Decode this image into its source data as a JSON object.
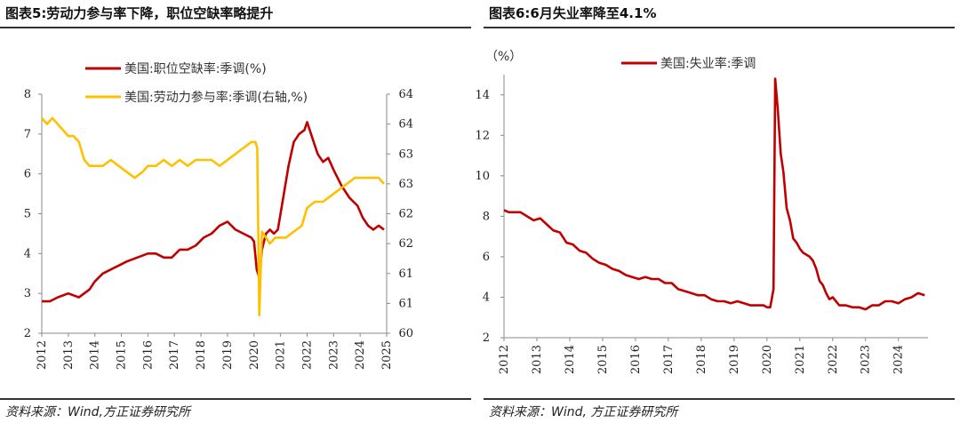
{
  "left_panel": {
    "title": "图表5:劳动力参与率下降，职位空缺率略提升",
    "source": "资料来源：Wind,方正证券研究所"
  },
  "right_panel": {
    "title": "图表6:6月失业率降至4.1%",
    "source": "资料来源：Wind, 方正证券研究所"
  },
  "chart_data": [
    {
      "type": "line",
      "title": "图表5:劳动力参与率下降，职位空缺率略提升",
      "x_ticks": [
        "2012",
        "2013",
        "2014",
        "2015",
        "2016",
        "2017",
        "2018",
        "2019",
        "2020",
        "2021",
        "2022",
        "2023",
        "2024",
        "2025"
      ],
      "xlim": [
        2012,
        2025
      ],
      "ylim_left": [
        2,
        8
      ],
      "y_ticks_left": [
        "2",
        "3",
        "4",
        "5",
        "6",
        "7",
        "8"
      ],
      "ylim_right": [
        60,
        64
      ],
      "y_ticks_right": [
        "60",
        "61",
        "61",
        "62",
        "62",
        "63",
        "63",
        "64",
        "64"
      ],
      "y_ticks_right_values": [
        60,
        60.5,
        61,
        61.5,
        62,
        62.5,
        63,
        63.5,
        64
      ],
      "series": [
        {
          "name": "美国:职位空缺率:季调(%)",
          "axis": "left",
          "color": "#c00000",
          "x": [
            2012.0,
            2012.3,
            2012.6,
            2013.0,
            2013.4,
            2013.8,
            2014.0,
            2014.3,
            2014.6,
            2014.9,
            2015.2,
            2015.6,
            2016.0,
            2016.3,
            2016.6,
            2016.9,
            2017.2,
            2017.5,
            2017.8,
            2018.1,
            2018.4,
            2018.7,
            2019.0,
            2019.3,
            2019.6,
            2019.9,
            2020.0,
            2020.1,
            2020.2,
            2020.3,
            2020.45,
            2020.6,
            2020.75,
            2020.9,
            2021.1,
            2021.3,
            2021.5,
            2021.7,
            2021.9,
            2022.0,
            2022.2,
            2022.4,
            2022.6,
            2022.8,
            2023.0,
            2023.3,
            2023.6,
            2023.9,
            2024.1,
            2024.3,
            2024.5,
            2024.7,
            2024.9
          ],
          "y": [
            2.8,
            2.8,
            2.9,
            3.0,
            2.9,
            3.1,
            3.3,
            3.5,
            3.6,
            3.7,
            3.8,
            3.9,
            4.0,
            4.0,
            3.9,
            3.9,
            4.1,
            4.1,
            4.2,
            4.4,
            4.5,
            4.7,
            4.8,
            4.6,
            4.5,
            4.4,
            4.3,
            3.6,
            3.4,
            4.1,
            4.5,
            4.6,
            4.5,
            4.6,
            5.4,
            6.2,
            6.8,
            7.0,
            7.1,
            7.3,
            6.9,
            6.5,
            6.3,
            6.4,
            6.1,
            5.7,
            5.4,
            5.2,
            4.9,
            4.7,
            4.6,
            4.7,
            4.6
          ]
        },
        {
          "name": "美国:劳动力参与率:季调(右轴,%)",
          "axis": "right",
          "color": "#ffc000",
          "x": [
            2012.0,
            2012.2,
            2012.4,
            2012.6,
            2012.8,
            2013.0,
            2013.2,
            2013.4,
            2013.6,
            2013.8,
            2014.0,
            2014.3,
            2014.6,
            2014.9,
            2015.2,
            2015.5,
            2015.8,
            2016.0,
            2016.3,
            2016.6,
            2016.9,
            2017.2,
            2017.5,
            2017.8,
            2018.1,
            2018.4,
            2018.7,
            2019.0,
            2019.3,
            2019.6,
            2019.9,
            2020.05,
            2020.12,
            2020.2,
            2020.3,
            2020.45,
            2020.6,
            2020.8,
            2021.0,
            2021.2,
            2021.5,
            2021.8,
            2022.0,
            2022.3,
            2022.6,
            2022.9,
            2023.2,
            2023.5,
            2023.8,
            2024.1,
            2024.4,
            2024.7,
            2024.9
          ],
          "y": [
            63.6,
            63.5,
            63.6,
            63.5,
            63.4,
            63.3,
            63.3,
            63.2,
            62.9,
            62.8,
            62.8,
            62.8,
            62.9,
            62.8,
            62.7,
            62.6,
            62.7,
            62.8,
            62.8,
            62.9,
            62.8,
            62.9,
            62.8,
            62.9,
            62.9,
            62.9,
            62.8,
            62.9,
            63.0,
            63.1,
            63.2,
            63.2,
            63.1,
            60.3,
            61.7,
            61.6,
            61.5,
            61.6,
            61.6,
            61.6,
            61.7,
            61.8,
            62.1,
            62.2,
            62.2,
            62.3,
            62.4,
            62.5,
            62.6,
            62.6,
            62.6,
            62.6,
            62.5
          ]
        }
      ]
    },
    {
      "type": "line",
      "title": "图表6:6月失业率降至4.1%",
      "ylabel": "（%）",
      "x_ticks": [
        "2012",
        "2013",
        "2014",
        "2015",
        "2016",
        "2017",
        "2018",
        "2019",
        "2020",
        "2021",
        "2022",
        "2023",
        "2024"
      ],
      "xlim": [
        2012,
        2024.9
      ],
      "ylim": [
        2,
        15
      ],
      "y_ticks": [
        "2",
        "4",
        "6",
        "8",
        "10",
        "12",
        "14"
      ],
      "series": [
        {
          "name": "美国:失业率:季调",
          "color": "#c00000",
          "x": [
            2012.0,
            2012.15,
            2012.3,
            2012.5,
            2012.7,
            2012.9,
            2013.1,
            2013.3,
            2013.5,
            2013.7,
            2013.9,
            2014.1,
            2014.3,
            2014.5,
            2014.7,
            2014.9,
            2015.1,
            2015.3,
            2015.5,
            2015.7,
            2015.9,
            2016.1,
            2016.3,
            2016.5,
            2016.7,
            2016.9,
            2017.1,
            2017.3,
            2017.5,
            2017.7,
            2017.9,
            2018.1,
            2018.3,
            2018.5,
            2018.7,
            2018.9,
            2019.1,
            2019.3,
            2019.5,
            2019.7,
            2019.9,
            2020.0,
            2020.1,
            2020.2,
            2020.25,
            2020.33,
            2020.42,
            2020.5,
            2020.6,
            2020.7,
            2020.8,
            2020.9,
            2021.0,
            2021.1,
            2021.2,
            2021.3,
            2021.4,
            2021.5,
            2021.6,
            2021.7,
            2021.8,
            2021.9,
            2022.0,
            2022.2,
            2022.4,
            2022.6,
            2022.8,
            2023.0,
            2023.2,
            2023.4,
            2023.6,
            2023.8,
            2024.0,
            2024.2,
            2024.4,
            2024.6,
            2024.8
          ],
          "y": [
            8.3,
            8.2,
            8.2,
            8.2,
            8.0,
            7.8,
            7.9,
            7.6,
            7.3,
            7.2,
            6.7,
            6.6,
            6.3,
            6.2,
            5.9,
            5.7,
            5.6,
            5.4,
            5.3,
            5.1,
            5.0,
            4.9,
            5.0,
            4.9,
            4.9,
            4.7,
            4.7,
            4.4,
            4.3,
            4.2,
            4.1,
            4.1,
            3.9,
            3.8,
            3.8,
            3.7,
            3.8,
            3.7,
            3.6,
            3.6,
            3.6,
            3.5,
            3.5,
            4.4,
            14.8,
            13.3,
            11.1,
            10.2,
            8.4,
            7.8,
            6.9,
            6.7,
            6.4,
            6.2,
            6.1,
            6.0,
            5.8,
            5.4,
            4.8,
            4.6,
            4.2,
            3.9,
            4.0,
            3.6,
            3.6,
            3.5,
            3.5,
            3.4,
            3.6,
            3.6,
            3.8,
            3.8,
            3.7,
            3.9,
            4.0,
            4.2,
            4.1
          ]
        }
      ]
    }
  ]
}
